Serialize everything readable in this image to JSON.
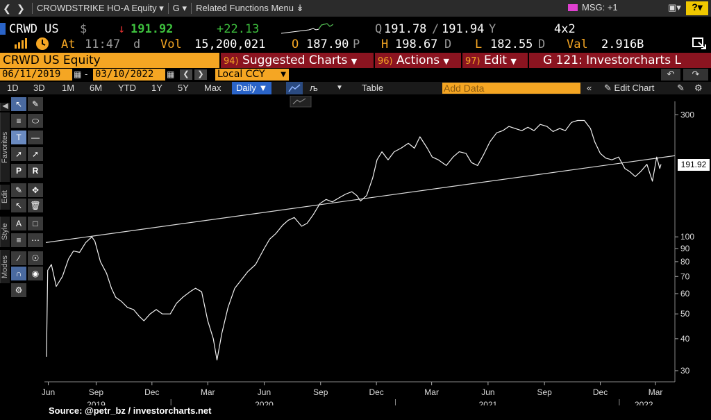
{
  "topbar": {
    "title": "CROWDSTRIKE HO-A Equity",
    "function": "G",
    "related": "Related Functions Menu",
    "msg": "MSG: +1",
    "help": "?"
  },
  "quote": {
    "ticker": "CRWD US",
    "currency": "$",
    "last": "191.92",
    "change": "+22.13",
    "q_label": "Q",
    "bid": "191.78",
    "ask": "191.94",
    "bid_ask_suffix": "Y",
    "size": "4x2",
    "at_label": "At",
    "time": "11:47",
    "time_suffix": "d",
    "vol_label": "Vol",
    "volume": "15,200,021",
    "open_label": "O",
    "open": "187.90",
    "open_suffix": "P",
    "high_label": "H",
    "high": "198.67",
    "high_suffix": "D",
    "low_label": "L",
    "low": "182.55",
    "low_suffix": "D",
    "val_label": "Val",
    "value": "2.916B"
  },
  "toolbar": {
    "security": "CRWD US Equity",
    "suggested_num": "94)",
    "suggested": "Suggested Charts",
    "actions_num": "96)",
    "actions": "Actions",
    "edit_num": "97)",
    "edit": "Edit",
    "chart_name": "G 121: Investorcharts L"
  },
  "daterange": {
    "start": "06/11/2019",
    "end": "03/10/2022",
    "currency": "Local CCY"
  },
  "periods": [
    "1D",
    "3D",
    "1M",
    "6M",
    "YTD",
    "1Y",
    "5Y",
    "Max"
  ],
  "frequency": "Daily",
  "table_label": "Table",
  "add_data_placeholder": "Add Data",
  "edit_chart_label": "Edit Chart",
  "side_tabs": [
    "Favorites",
    "Edit",
    "Style",
    "Modes"
  ],
  "source": "Source: @petr_bz / investorcharts.net",
  "colors": {
    "amber": "#f5a623",
    "menu_red": "#8b1420",
    "up_green": "#3ec13e",
    "down_red": "#e03030",
    "daily_blue": "#2a64c8"
  },
  "chart_data": {
    "type": "line",
    "scale": "log",
    "ylim": [
      28,
      330
    ],
    "y_ticks": [
      30,
      40,
      50,
      60,
      70,
      80,
      90,
      100,
      300
    ],
    "x_months": [
      {
        "label": "Jun",
        "x": "2019-06-15"
      },
      {
        "label": "Sep",
        "x": "2019-09-01"
      },
      {
        "label": "Dec",
        "x": "2019-12-01"
      },
      {
        "label": "Mar",
        "x": "2020-03-01"
      },
      {
        "label": "Jun",
        "x": "2020-06-01"
      },
      {
        "label": "Sep",
        "x": "2020-09-01"
      },
      {
        "label": "Dec",
        "x": "2020-12-01"
      },
      {
        "label": "Mar",
        "x": "2021-03-01"
      },
      {
        "label": "Jun",
        "x": "2021-06-01"
      },
      {
        "label": "Sep",
        "x": "2021-09-01"
      },
      {
        "label": "Dec",
        "x": "2021-12-01"
      },
      {
        "label": "Mar",
        "x": "2022-03-01"
      }
    ],
    "x_years": [
      {
        "label": "2019",
        "x": "2019-09-01"
      },
      {
        "label": "2020",
        "x": "2020-06-01"
      },
      {
        "label": "2021",
        "x": "2021-06-01"
      },
      {
        "label": "2022",
        "x": "2022-02-10"
      }
    ],
    "last_label": "191.92",
    "trendline": [
      {
        "x": "2019-06-11",
        "y": 95
      },
      {
        "x": "2022-03-10",
        "y": 205
      }
    ],
    "series": [
      {
        "points": [
          [
            "2019-06-12",
            34
          ],
          [
            "2019-06-14",
            74
          ],
          [
            "2019-06-20",
            78
          ],
          [
            "2019-06-28",
            64
          ],
          [
            "2019-07-08",
            70
          ],
          [
            "2019-07-18",
            82
          ],
          [
            "2019-07-26",
            88
          ],
          [
            "2019-08-05",
            87
          ],
          [
            "2019-08-15",
            95
          ],
          [
            "2019-08-25",
            100
          ],
          [
            "2019-08-30",
            96
          ],
          [
            "2019-09-08",
            80
          ],
          [
            "2019-09-18",
            72
          ],
          [
            "2019-09-26",
            63
          ],
          [
            "2019-10-03",
            58
          ],
          [
            "2019-10-12",
            56
          ],
          [
            "2019-10-22",
            53
          ],
          [
            "2019-11-01",
            52
          ],
          [
            "2019-11-10",
            49
          ],
          [
            "2019-11-18",
            47
          ],
          [
            "2019-11-28",
            50
          ],
          [
            "2019-12-08",
            52
          ],
          [
            "2019-12-18",
            50
          ],
          [
            "2019-12-31",
            50
          ],
          [
            "2020-01-10",
            55
          ],
          [
            "2020-01-20",
            58
          ],
          [
            "2020-02-01",
            61
          ],
          [
            "2020-02-10",
            63
          ],
          [
            "2020-02-20",
            61
          ],
          [
            "2020-03-01",
            47
          ],
          [
            "2020-03-10",
            40
          ],
          [
            "2020-03-16",
            33
          ],
          [
            "2020-03-24",
            42
          ],
          [
            "2020-04-03",
            53
          ],
          [
            "2020-04-14",
            63
          ],
          [
            "2020-04-25",
            68
          ],
          [
            "2020-05-05",
            73
          ],
          [
            "2020-05-18",
            78
          ],
          [
            "2020-06-01",
            90
          ],
          [
            "2020-06-10",
            98
          ],
          [
            "2020-06-20",
            103
          ],
          [
            "2020-07-01",
            111
          ],
          [
            "2020-07-10",
            116
          ],
          [
            "2020-07-20",
            119
          ],
          [
            "2020-08-01",
            110
          ],
          [
            "2020-08-10",
            113
          ],
          [
            "2020-08-20",
            122
          ],
          [
            "2020-08-31",
            135
          ],
          [
            "2020-09-10",
            140
          ],
          [
            "2020-09-20",
            137
          ],
          [
            "2020-10-01",
            142
          ],
          [
            "2020-10-12",
            147
          ],
          [
            "2020-10-22",
            150
          ],
          [
            "2020-10-30",
            145
          ],
          [
            "2020-11-05",
            138
          ],
          [
            "2020-11-15",
            145
          ],
          [
            "2020-11-25",
            170
          ],
          [
            "2020-12-02",
            200
          ],
          [
            "2020-12-10",
            215
          ],
          [
            "2020-12-20",
            200
          ],
          [
            "2020-12-30",
            215
          ],
          [
            "2021-01-10",
            222
          ],
          [
            "2021-01-22",
            232
          ],
          [
            "2021-02-01",
            222
          ],
          [
            "2021-02-10",
            246
          ],
          [
            "2021-02-22",
            222
          ],
          [
            "2021-03-02",
            205
          ],
          [
            "2021-03-12",
            200
          ],
          [
            "2021-03-25",
            190
          ],
          [
            "2021-04-05",
            205
          ],
          [
            "2021-04-15",
            215
          ],
          [
            "2021-04-26",
            212
          ],
          [
            "2021-05-05",
            195
          ],
          [
            "2021-05-15",
            190
          ],
          [
            "2021-05-25",
            210
          ],
          [
            "2021-06-04",
            235
          ],
          [
            "2021-06-15",
            255
          ],
          [
            "2021-06-25",
            260
          ],
          [
            "2021-07-05",
            270
          ],
          [
            "2021-07-15",
            265
          ],
          [
            "2021-07-26",
            260
          ],
          [
            "2021-08-05",
            268
          ],
          [
            "2021-08-15",
            260
          ],
          [
            "2021-08-25",
            275
          ],
          [
            "2021-09-05",
            270
          ],
          [
            "2021-09-15",
            258
          ],
          [
            "2021-09-26",
            265
          ],
          [
            "2021-10-05",
            260
          ],
          [
            "2021-10-15",
            280
          ],
          [
            "2021-10-25",
            285
          ],
          [
            "2021-11-05",
            285
          ],
          [
            "2021-11-15",
            265
          ],
          [
            "2021-11-22",
            235
          ],
          [
            "2021-12-01",
            212
          ],
          [
            "2021-12-10",
            203
          ],
          [
            "2021-12-20",
            200
          ],
          [
            "2021-12-31",
            205
          ],
          [
            "2022-01-10",
            185
          ],
          [
            "2022-01-18",
            180
          ],
          [
            "2022-01-27",
            172
          ],
          [
            "2022-02-05",
            180
          ],
          [
            "2022-02-15",
            192
          ],
          [
            "2022-02-24",
            165
          ],
          [
            "2022-03-03",
            205
          ],
          [
            "2022-03-08",
            185
          ],
          [
            "2022-03-10",
            192
          ]
        ]
      }
    ]
  }
}
